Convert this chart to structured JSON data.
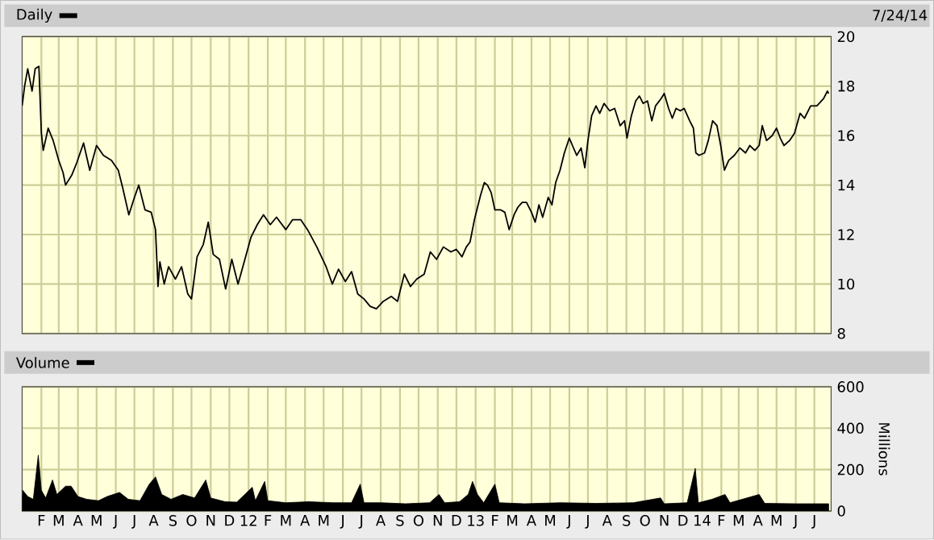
{
  "chart_data": [
    {
      "type": "line",
      "annotations": [
        "7/24/14"
      ],
      "legend": "top left",
      "grid": true,
      "tick_labels": "y",
      "xlim": [
        "2011-01-01",
        "2014-07-28"
      ],
      "ylim": [
        8,
        20
      ],
      "yticks": [
        8,
        10,
        12,
        14,
        16,
        18,
        20
      ],
      "xticks": [
        {
          "value": "2011-02-01",
          "label": null
        },
        {
          "value": "2011-03-01",
          "label": null
        },
        {
          "value": "2011-04-01",
          "label": null
        },
        {
          "value": "2011-05-01",
          "label": null
        },
        {
          "value": "2011-06-01",
          "label": null
        },
        {
          "value": "2011-07-01",
          "label": null
        },
        {
          "value": "2011-08-01",
          "label": null
        },
        {
          "value": "2011-09-01",
          "label": null
        },
        {
          "value": "2011-10-01",
          "label": null
        },
        {
          "value": "2011-11-01",
          "label": null
        },
        {
          "value": "2011-12-01",
          "label": null
        },
        {
          "value": "2012-01-01",
          "label": null
        },
        {
          "value": "2012-02-01",
          "label": null
        },
        {
          "value": "2012-03-01",
          "label": null
        },
        {
          "value": "2012-04-01",
          "label": null
        },
        {
          "value": "2012-05-01",
          "label": null
        },
        {
          "value": "2012-06-01",
          "label": null
        },
        {
          "value": "2012-07-01",
          "label": null
        },
        {
          "value": "2012-08-01",
          "label": null
        },
        {
          "value": "2012-09-01",
          "label": null
        },
        {
          "value": "2012-10-01",
          "label": null
        },
        {
          "value": "2012-11-01",
          "label": null
        },
        {
          "value": "2012-12-01",
          "label": null
        },
        {
          "value": "2013-01-01",
          "label": null
        },
        {
          "value": "2013-02-01",
          "label": null
        },
        {
          "value": "2013-03-01",
          "label": null
        },
        {
          "value": "2013-04-01",
          "label": null
        },
        {
          "value": "2013-05-01",
          "label": null
        },
        {
          "value": "2013-06-01",
          "label": null
        },
        {
          "value": "2013-07-01",
          "label": null
        },
        {
          "value": "2013-08-01",
          "label": null
        },
        {
          "value": "2013-09-01",
          "label": null
        },
        {
          "value": "2013-10-01",
          "label": null
        },
        {
          "value": "2013-11-01",
          "label": null
        },
        {
          "value": "2013-12-01",
          "label": null
        },
        {
          "value": "2014-01-01",
          "label": null
        },
        {
          "value": "2014-02-01",
          "label": null
        },
        {
          "value": "2014-03-01",
          "label": null
        },
        {
          "value": "2014-04-01",
          "label": null
        },
        {
          "value": "2014-05-01",
          "label": null
        },
        {
          "value": "2014-06-01",
          "label": null
        },
        {
          "value": "2014-07-01",
          "label": null
        }
      ],
      "series": [
        {
          "name": "Daily",
          "color": "#000000",
          "x": [
            "2011-01-01",
            "2011-01-05",
            "2011-01-10",
            "2011-01-17",
            "2011-01-22",
            "2011-01-28",
            "2011-02-01",
            "2011-02-04",
            "2011-02-12",
            "2011-02-20",
            "2011-03-01",
            "2011-03-08",
            "2011-03-12",
            "2011-03-22",
            "2011-03-30",
            "2011-04-10",
            "2011-04-20",
            "2011-05-01",
            "2011-05-12",
            "2011-05-25",
            "2011-06-05",
            "2011-06-12",
            "2011-06-22",
            "2011-07-01",
            "2011-07-08",
            "2011-07-18",
            "2011-07-28",
            "2011-08-04",
            "2011-08-08",
            "2011-08-11",
            "2011-08-18",
            "2011-08-25",
            "2011-09-05",
            "2011-09-15",
            "2011-09-25",
            "2011-10-01",
            "2011-10-10",
            "2011-10-20",
            "2011-10-28",
            "2011-11-05",
            "2011-11-15",
            "2011-11-25",
            "2011-12-05",
            "2011-12-15",
            "2011-12-25",
            "2012-01-05",
            "2012-01-15",
            "2012-01-25",
            "2012-02-05",
            "2012-02-15",
            "2012-03-01",
            "2012-03-12",
            "2012-03-25",
            "2012-04-05",
            "2012-04-20",
            "2012-05-05",
            "2012-05-15",
            "2012-05-25",
            "2012-06-05",
            "2012-06-15",
            "2012-06-25",
            "2012-07-05",
            "2012-07-15",
            "2012-07-25",
            "2012-08-05",
            "2012-08-18",
            "2012-08-28",
            "2012-09-08",
            "2012-09-18",
            "2012-09-28",
            "2012-10-10",
            "2012-10-20",
            "2012-10-30",
            "2012-11-10",
            "2012-11-22",
            "2012-12-01",
            "2012-12-10",
            "2012-12-17",
            "2012-12-23",
            "2012-12-30",
            "2013-01-03",
            "2013-01-09",
            "2013-01-15",
            "2013-01-20",
            "2013-01-26",
            "2013-02-01",
            "2013-02-10",
            "2013-02-17",
            "2013-02-24",
            "2013-03-04",
            "2013-03-10",
            "2013-03-17",
            "2013-03-24",
            "2013-04-01",
            "2013-04-07",
            "2013-04-13",
            "2013-04-19",
            "2013-04-28",
            "2013-05-04",
            "2013-05-10",
            "2013-05-17",
            "2013-05-24",
            "2013-06-01",
            "2013-06-06",
            "2013-06-13",
            "2013-06-20",
            "2013-06-26",
            "2013-07-01",
            "2013-07-07",
            "2013-07-14",
            "2013-07-20",
            "2013-07-27",
            "2013-08-05",
            "2013-08-13",
            "2013-08-22",
            "2013-08-29",
            "2013-09-02",
            "2013-09-09",
            "2013-09-16",
            "2013-09-22",
            "2013-09-28",
            "2013-10-05",
            "2013-10-12",
            "2013-10-18",
            "2013-10-27",
            "2013-11-01",
            "2013-11-08",
            "2013-11-14",
            "2013-11-20",
            "2013-11-27",
            "2013-12-03",
            "2013-12-12",
            "2013-12-18",
            "2013-12-22",
            "2013-12-27",
            "2014-01-05",
            "2014-01-11",
            "2014-01-18",
            "2014-01-25",
            "2014-01-31",
            "2014-02-06",
            "2014-02-13",
            "2014-02-22",
            "2014-03-03",
            "2014-03-12",
            "2014-03-19",
            "2014-03-27",
            "2014-04-03",
            "2014-04-08",
            "2014-04-15",
            "2014-04-24",
            "2014-05-01",
            "2014-05-07",
            "2014-05-13",
            "2014-05-22",
            "2014-05-30",
            "2014-06-08",
            "2014-06-15",
            "2014-06-25",
            "2014-07-05",
            "2014-07-16",
            "2014-07-22",
            "2014-07-24"
          ],
          "values": [
            17.2,
            18.0,
            18.7,
            17.8,
            18.7,
            18.8,
            16.1,
            15.4,
            16.3,
            15.8,
            15.0,
            14.5,
            14.0,
            14.4,
            14.9,
            15.7,
            14.6,
            15.6,
            15.2,
            15.0,
            14.6,
            13.9,
            12.8,
            13.5,
            14.0,
            13.0,
            12.9,
            12.2,
            9.9,
            10.9,
            10.0,
            10.7,
            10.2,
            10.7,
            9.6,
            9.4,
            11.1,
            11.6,
            12.5,
            11.2,
            11.0,
            9.8,
            11.0,
            10.0,
            10.9,
            11.9,
            12.4,
            12.8,
            12.4,
            12.7,
            12.2,
            12.6,
            12.6,
            12.2,
            11.5,
            10.7,
            10.0,
            10.6,
            10.1,
            10.5,
            9.6,
            9.4,
            9.1,
            9.0,
            9.3,
            9.5,
            9.3,
            10.4,
            9.9,
            10.2,
            10.4,
            11.3,
            11.0,
            11.5,
            11.3,
            11.4,
            11.1,
            11.5,
            11.7,
            12.6,
            13.0,
            13.6,
            14.1,
            14.0,
            13.7,
            13.0,
            13.0,
            12.9,
            12.2,
            12.8,
            13.1,
            13.3,
            13.3,
            12.9,
            12.5,
            13.2,
            12.7,
            13.5,
            13.2,
            14.1,
            14.6,
            15.3,
            15.9,
            15.6,
            15.2,
            15.5,
            14.7,
            15.8,
            16.8,
            17.2,
            16.9,
            17.3,
            17.0,
            17.1,
            16.4,
            16.6,
            15.9,
            16.8,
            17.4,
            17.6,
            17.3,
            17.4,
            16.6,
            17.2,
            17.5,
            17.7,
            17.1,
            16.7,
            17.1,
            17.0,
            17.1,
            16.6,
            16.3,
            15.3,
            15.2,
            15.3,
            15.8,
            16.6,
            16.4,
            15.6,
            14.6,
            15.0,
            15.2,
            15.5,
            15.3,
            15.6,
            15.4,
            15.6,
            16.4,
            15.8,
            16.0,
            16.3,
            15.9,
            15.6,
            15.8,
            16.1,
            16.9,
            16.7,
            17.2,
            17.2,
            17.5,
            17.8,
            17.7
          ]
        }
      ]
    },
    {
      "type": "area",
      "ylabel": "Millions",
      "legend": "top left",
      "grid": true,
      "xlim": [
        "2011-01-01",
        "2014-07-28"
      ],
      "ylim": [
        0,
        600
      ],
      "yticks": [
        0,
        200,
        400,
        600
      ],
      "xticks": [
        {
          "value": "2011-02-01",
          "label": "F"
        },
        {
          "value": "2011-03-01",
          "label": "M"
        },
        {
          "value": "2011-04-01",
          "label": "A"
        },
        {
          "value": "2011-05-01",
          "label": "M"
        },
        {
          "value": "2011-06-01",
          "label": "J"
        },
        {
          "value": "2011-07-01",
          "label": "J"
        },
        {
          "value": "2011-08-01",
          "label": "A"
        },
        {
          "value": "2011-09-01",
          "label": "S"
        },
        {
          "value": "2011-10-01",
          "label": "O"
        },
        {
          "value": "2011-11-01",
          "label": "N"
        },
        {
          "value": "2011-12-01",
          "label": "D"
        },
        {
          "value": "2012-01-01",
          "label": "12"
        },
        {
          "value": "2012-02-01",
          "label": "F"
        },
        {
          "value": "2012-03-01",
          "label": "M"
        },
        {
          "value": "2012-04-01",
          "label": "A"
        },
        {
          "value": "2012-05-01",
          "label": "M"
        },
        {
          "value": "2012-06-01",
          "label": "J"
        },
        {
          "value": "2012-07-01",
          "label": "J"
        },
        {
          "value": "2012-08-01",
          "label": "A"
        },
        {
          "value": "2012-09-01",
          "label": "S"
        },
        {
          "value": "2012-10-01",
          "label": "O"
        },
        {
          "value": "2012-11-01",
          "label": "N"
        },
        {
          "value": "2012-12-01",
          "label": "D"
        },
        {
          "value": "2013-01-01",
          "label": "13"
        },
        {
          "value": "2013-02-01",
          "label": "F"
        },
        {
          "value": "2013-03-01",
          "label": "M"
        },
        {
          "value": "2013-04-01",
          "label": "A"
        },
        {
          "value": "2013-05-01",
          "label": "M"
        },
        {
          "value": "2013-06-01",
          "label": "J"
        },
        {
          "value": "2013-07-01",
          "label": "J"
        },
        {
          "value": "2013-08-01",
          "label": "A"
        },
        {
          "value": "2013-09-01",
          "label": "S"
        },
        {
          "value": "2013-10-01",
          "label": "O"
        },
        {
          "value": "2013-11-01",
          "label": "N"
        },
        {
          "value": "2013-12-01",
          "label": "D"
        },
        {
          "value": "2014-01-01",
          "label": "14"
        },
        {
          "value": "2014-02-01",
          "label": "F"
        },
        {
          "value": "2014-03-01",
          "label": "M"
        },
        {
          "value": "2014-04-01",
          "label": "A"
        },
        {
          "value": "2014-05-01",
          "label": "M"
        },
        {
          "value": "2014-06-01",
          "label": "J"
        },
        {
          "value": "2014-07-01",
          "label": "J"
        }
      ],
      "series": [
        {
          "name": "Volume",
          "color": "#000000",
          "x": [
            "2011-01-01",
            "2011-01-02",
            "2011-01-10",
            "2011-01-19",
            "2011-01-27",
            "2011-02-01",
            "2011-02-08",
            "2011-02-19",
            "2011-02-26",
            "2011-03-12",
            "2011-03-21",
            "2011-04-01",
            "2011-04-15",
            "2011-05-04",
            "2011-05-18",
            "2011-06-07",
            "2011-06-21",
            "2011-07-10",
            "2011-07-25",
            "2011-08-04",
            "2011-08-14",
            "2011-08-29",
            "2011-09-17",
            "2011-10-06",
            "2011-10-24",
            "2011-11-01",
            "2011-11-24",
            "2011-12-13",
            "2012-01-07",
            "2012-01-12",
            "2012-01-27",
            "2012-02-01",
            "2012-03-01",
            "2012-04-07",
            "2012-05-16",
            "2012-06-15",
            "2012-06-29",
            "2012-07-05",
            "2012-08-02",
            "2012-09-10",
            "2012-10-19",
            "2012-11-03",
            "2012-11-12",
            "2012-12-06",
            "2012-12-20",
            "2012-12-27",
            "2013-01-04",
            "2013-01-14",
            "2013-02-01",
            "2013-02-08",
            "2013-03-21",
            "2013-05-18",
            "2013-07-15",
            "2013-09-12",
            "2013-10-26",
            "2013-11-01",
            "2013-12-08",
            "2013-12-21",
            "2013-12-26",
            "2014-01-17",
            "2014-02-07",
            "2014-02-15",
            "2014-04-03",
            "2014-04-12",
            "2014-06-01",
            "2014-07-24"
          ],
          "values": [
            57,
            100,
            70,
            57,
            270,
            100,
            63,
            150,
            80,
            120,
            120,
            70,
            57,
            50,
            70,
            90,
            57,
            50,
            130,
            165,
            80,
            57,
            80,
            63,
            150,
            63,
            45,
            43,
            115,
            50,
            143,
            50,
            40,
            45,
            40,
            40,
            130,
            40,
            40,
            35,
            40,
            80,
            40,
            45,
            80,
            143,
            80,
            40,
            130,
            40,
            35,
            40,
            37,
            40,
            63,
            35,
            40,
            206,
            40,
            57,
            80,
            40,
            80,
            37,
            35,
            35
          ]
        }
      ]
    }
  ]
}
